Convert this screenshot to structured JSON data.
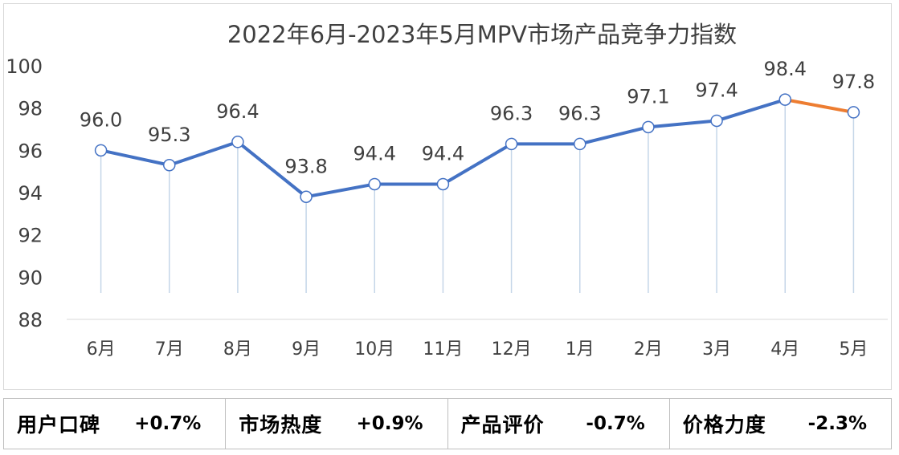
{
  "chart_data": {
    "type": "line",
    "title": "2022年6月-2023年5月MPV市场产品竞争力指数",
    "categories": [
      "6月",
      "7月",
      "8月",
      "9月",
      "10月",
      "11月",
      "12月",
      "1月",
      "2月",
      "3月",
      "4月",
      "5月"
    ],
    "series": [
      {
        "values": [
          96.0,
          95.3,
          96.4,
          93.8,
          94.4,
          94.4,
          96.3,
          96.3,
          97.1,
          97.4,
          98.4,
          97.8
        ],
        "labels": [
          "96.0",
          "95.3",
          "96.4",
          "93.8",
          "94.4",
          "94.4",
          "96.3",
          "96.3",
          "97.1",
          "97.4",
          "98.4",
          "97.8"
        ]
      }
    ],
    "ylim": [
      88,
      100
    ],
    "yticks": [
      88,
      90,
      92,
      94,
      96,
      98,
      100
    ],
    "line_color": "#4472c4",
    "highlight_last_segment_color": "#ed7d31",
    "grid": false
  },
  "metrics": [
    {
      "label": "用户口碑",
      "value": "+0.7%"
    },
    {
      "label": "市场热度",
      "value": "+0.9%"
    },
    {
      "label": "产品评价",
      "value": "-0.7%"
    },
    {
      "label": "价格力度",
      "value": "-2.3%"
    }
  ]
}
